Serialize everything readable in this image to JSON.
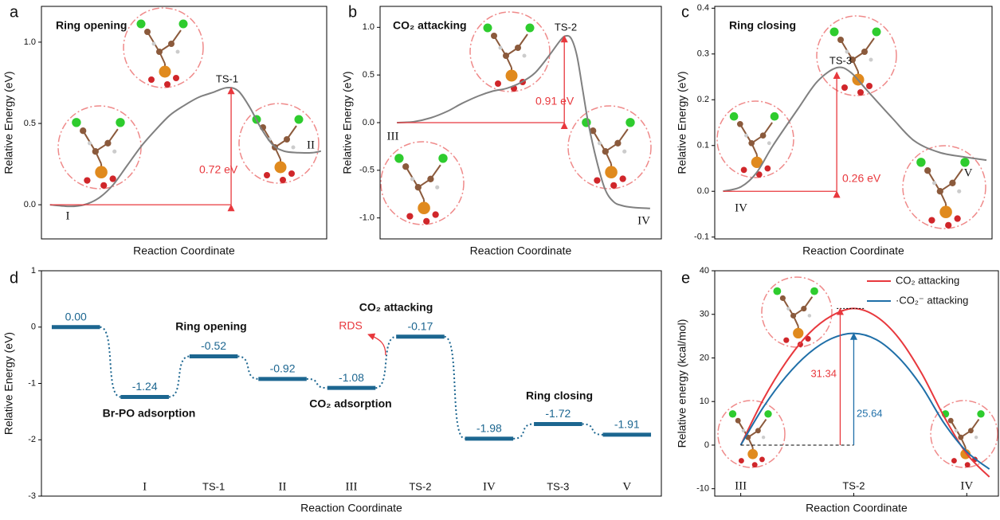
{
  "chart_data": [
    {
      "panel": "a",
      "type": "line",
      "title": "Ring opening",
      "xlabel": "Reaction Coordinate",
      "ylabel": "Relative Energy (eV)",
      "x": [
        3,
        10,
        15,
        20,
        25,
        30,
        35,
        40,
        45,
        50,
        55,
        60,
        65,
        69,
        73,
        77,
        81,
        85,
        90,
        95,
        98
      ],
      "values": [
        0,
        -0.01,
        0,
        0.04,
        0.12,
        0.24,
        0.36,
        0.46,
        0.55,
        0.61,
        0.66,
        0.69,
        0.72,
        0.7,
        0.6,
        0.47,
        0.37,
        0.33,
        0.32,
        0.32,
        0.33
      ],
      "color": "#808080",
      "xlim": [
        0,
        100
      ],
      "ylim": [
        -0.21,
        1.22
      ],
      "yticks": [
        {
          "value": 0,
          "label": "0.0"
        },
        {
          "value": 0.5,
          "label": "0.5"
        },
        {
          "value": 1,
          "label": "1.0"
        }
      ],
      "labels": [
        "I",
        "TS-1",
        "II"
      ],
      "barrier": 0.72,
      "barrier_label": "0.72 eV",
      "barrier_color": "#e8383d"
    },
    {
      "panel": "b",
      "type": "line",
      "title": "CO₂ attacking",
      "xlabel": "Reaction Coordinate",
      "ylabel": "Relative Energy (eV)",
      "x": [
        6,
        12,
        18,
        24,
        29,
        35,
        40,
        45,
        50,
        55,
        60,
        64,
        66,
        68,
        70,
        72,
        74,
        77,
        80,
        83,
        86,
        90,
        96
      ],
      "values": [
        0,
        0.01,
        0.05,
        0.12,
        0.2,
        0.28,
        0.33,
        0.36,
        0.42,
        0.52,
        0.7,
        0.86,
        0.91,
        0.88,
        0.7,
        0.35,
        0,
        -0.4,
        -0.7,
        -0.83,
        -0.87,
        -0.89,
        -0.9
      ],
      "color": "#808080",
      "xlim": [
        0,
        100
      ],
      "ylim": [
        -1.22,
        1.22
      ],
      "yticks": [
        {
          "value": -1,
          "label": "-1.0"
        },
        {
          "value": -0.5,
          "label": "-0.5"
        },
        {
          "value": 0,
          "label": "0.0"
        },
        {
          "value": 0.5,
          "label": "0.5"
        },
        {
          "value": 1,
          "label": "1.0"
        }
      ],
      "labels": [
        "III",
        "TS-2",
        "IV"
      ],
      "barrier": 0.91,
      "barrier_label": "0.91 eV",
      "barrier_color": "#e8383d"
    },
    {
      "panel": "c",
      "type": "line",
      "title": "Ring closing",
      "xlabel": "Reaction Coordinate",
      "ylabel": "Relative Energy (eV)",
      "x": [
        3,
        9.5,
        15,
        21,
        30,
        37,
        44,
        49,
        55,
        64,
        72,
        81,
        90,
        98
      ],
      "values": [
        0,
        0.01,
        0.04,
        0.1,
        0.18,
        0.24,
        0.27,
        0.26,
        0.22,
        0.16,
        0.11,
        0.085,
        0.075,
        0.068
      ],
      "color": "#808080",
      "xlim": [
        0,
        100
      ],
      "ylim": [
        -0.104,
        0.404
      ],
      "yticks": [
        {
          "value": -0.1,
          "label": "-0.1"
        },
        {
          "value": 0,
          "label": "0.0"
        },
        0.1,
        0.2,
        0.3,
        0.4
      ],
      "labels": [
        "IV",
        "TS-3",
        "V"
      ],
      "barrier": 0.26,
      "barrier_label": "0.26 eV",
      "barrier_color": "#e8383d"
    },
    {
      "panel": "d",
      "type": "levels",
      "xlabel": "Reaction Coordinate",
      "ylabel": "Relative Energy (eV)",
      "categories": [
        null,
        "I",
        "TS-1",
        "II",
        "III",
        "TS-2",
        "IV",
        "TS-3",
        "V"
      ],
      "values": [
        0,
        -1.24,
        -0.52,
        -0.92,
        -1.08,
        -0.17,
        -1.98,
        -1.72,
        -1.91
      ],
      "value_labels": [
        "0.00",
        "-1.24",
        "-0.52",
        "-0.92",
        "-1.08",
        "-0.17",
        "-1.98",
        "-1.72",
        "-1.91"
      ],
      "color": "#1c6690",
      "ylim": [
        -3,
        1
      ],
      "yticks": [
        -3,
        -2,
        -1,
        0,
        1
      ],
      "stages": [
        "Br-PO adsorption",
        "Ring opening",
        "CO₂ adsorption",
        "CO₂ attacking",
        "Ring closing"
      ],
      "rds_label": "RDS",
      "rds_color": "#e8383d"
    },
    {
      "panel": "e",
      "type": "line",
      "xlabel": "Reaction Coordinate",
      "ylabel": "Relative energy (kcal/mol)",
      "x": [
        0,
        0.2,
        0.4,
        0.6,
        0.8,
        1.0,
        1.2,
        1.4,
        1.6,
        1.8,
        2.0,
        2.2
      ],
      "series": [
        {
          "name": "CO₂  attacking",
          "color": "#e8383d",
          "values": [
            0,
            10.5,
            19,
            25.5,
            29.6,
            31.34,
            29.5,
            24.5,
            16.5,
            6.5,
            -2,
            -7.3
          ]
        },
        {
          "name": "·CO₂⁻ attacking",
          "color": "#1f6fa8",
          "values": [
            0,
            8.7,
            15.7,
            21,
            24.4,
            25.64,
            24.2,
            20,
            13.5,
            5,
            -1.5,
            -5.5
          ]
        }
      ],
      "xlim": [
        -0.23,
        2.28
      ],
      "ylim": [
        -11.7,
        40
      ],
      "xticks": [
        {
          "value": 0,
          "label": "III"
        },
        {
          "value": 1,
          "label": "TS-2"
        },
        {
          "value": 2,
          "label": "IV"
        }
      ],
      "yticks": [
        -10,
        0,
        10,
        20,
        30,
        40
      ],
      "barriers": [
        31.34,
        25.64
      ],
      "legend": "upper right"
    }
  ]
}
